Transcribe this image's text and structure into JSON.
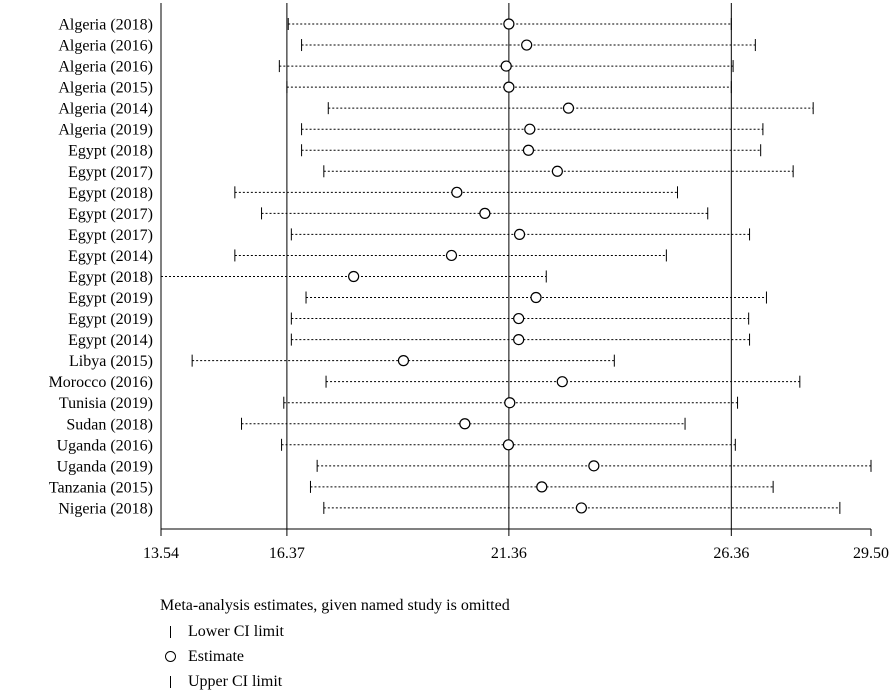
{
  "chart_data": {
    "type": "forest",
    "x_ticks": [
      "13.54",
      "16.37",
      "21.36",
      "26.36",
      "29.50"
    ],
    "reference_lines": [
      16.37,
      21.36,
      26.36
    ],
    "xlim": [
      13.54,
      29.5
    ],
    "studies": [
      {
        "label": "Algeria (2018)",
        "lower": 16.4,
        "estimate": 21.36,
        "upper": 26.36
      },
      {
        "label": "Algeria (2016)",
        "lower": 16.7,
        "estimate": 21.76,
        "upper": 26.9
      },
      {
        "label": "Algeria (2016)",
        "lower": 16.2,
        "estimate": 21.3,
        "upper": 26.4
      },
      {
        "label": "Algeria (2015)",
        "lower": 16.37,
        "estimate": 21.36,
        "upper": 26.36
      },
      {
        "label": "Algeria (2014)",
        "lower": 17.3,
        "estimate": 22.7,
        "upper": 28.2
      },
      {
        "label": "Algeria (2019)",
        "lower": 16.7,
        "estimate": 21.83,
        "upper": 27.07
      },
      {
        "label": "Egypt (2018)",
        "lower": 16.7,
        "estimate": 21.8,
        "upper": 27.02
      },
      {
        "label": "Egypt (2017)",
        "lower": 17.2,
        "estimate": 22.45,
        "upper": 27.75
      },
      {
        "label": "Egypt (2018)",
        "lower": 15.2,
        "estimate": 20.19,
        "upper": 25.15
      },
      {
        "label": "Egypt (2017)",
        "lower": 15.8,
        "estimate": 20.82,
        "upper": 25.83
      },
      {
        "label": "Egypt (2017)",
        "lower": 16.47,
        "estimate": 21.6,
        "upper": 26.77
      },
      {
        "label": "Egypt (2014)",
        "lower": 15.2,
        "estimate": 20.07,
        "upper": 24.9
      },
      {
        "label": "Egypt (2018)",
        "lower": 13.54,
        "estimate": 17.87,
        "upper": 22.2
      },
      {
        "label": "Egypt (2019)",
        "lower": 16.8,
        "estimate": 21.97,
        "upper": 27.15
      },
      {
        "label": "Egypt (2019)",
        "lower": 16.47,
        "estimate": 21.58,
        "upper": 26.75
      },
      {
        "label": "Egypt (2014)",
        "lower": 16.47,
        "estimate": 21.58,
        "upper": 26.77
      },
      {
        "label": "Libya (2015)",
        "lower": 14.24,
        "estimate": 18.99,
        "upper": 23.73
      },
      {
        "label": "Morocco (2016)",
        "lower": 17.25,
        "estimate": 22.56,
        "upper": 27.9
      },
      {
        "label": "Tunisia (2019)",
        "lower": 16.3,
        "estimate": 21.38,
        "upper": 26.5
      },
      {
        "label": "Sudan (2018)",
        "lower": 15.35,
        "estimate": 20.37,
        "upper": 25.32
      },
      {
        "label": "Uganda (2016)",
        "lower": 16.25,
        "estimate": 21.35,
        "upper": 26.45
      },
      {
        "label": "Uganda (2019)",
        "lower": 17.05,
        "estimate": 23.27,
        "upper": 29.5
      },
      {
        "label": "Tanzania (2015)",
        "lower": 16.9,
        "estimate": 22.1,
        "upper": 27.3
      },
      {
        "label": "Nigeria (2018)",
        "lower": 17.2,
        "estimate": 22.99,
        "upper": 28.8
      }
    ]
  },
  "legend": {
    "title": "Meta-analysis estimates, given named study is omitted",
    "items": [
      {
        "label": "Lower CI limit",
        "symbol": "bar"
      },
      {
        "label": "Estimate",
        "symbol": "circle"
      },
      {
        "label": "Upper CI limit",
        "symbol": "bar"
      }
    ]
  }
}
